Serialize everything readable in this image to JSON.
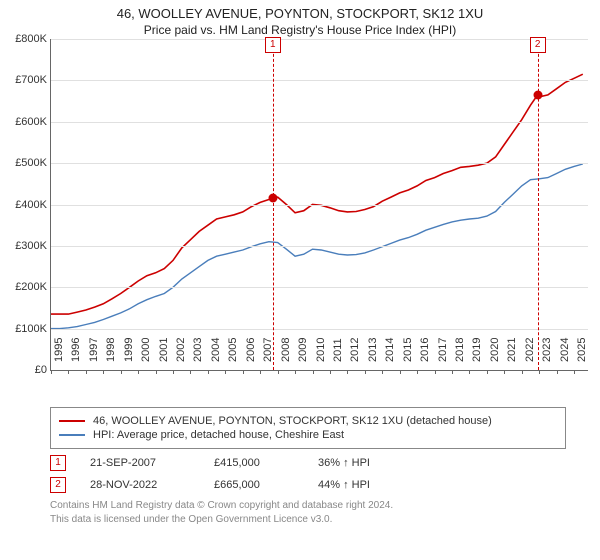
{
  "title": "46, WOOLLEY AVENUE, POYNTON, STOCKPORT, SK12 1XU",
  "subtitle": "Price paid vs. HM Land Registry's House Price Index (HPI)",
  "chart": {
    "type": "line",
    "background_color": "#ffffff",
    "grid_color": "#e0e0e0",
    "axis_color": "#666666",
    "x": {
      "min": 1995,
      "max": 2025.8,
      "ticks": [
        1995,
        1996,
        1997,
        1998,
        1999,
        2000,
        2001,
        2002,
        2003,
        2004,
        2005,
        2006,
        2007,
        2008,
        2009,
        2010,
        2011,
        2012,
        2013,
        2014,
        2015,
        2016,
        2017,
        2018,
        2019,
        2020,
        2021,
        2022,
        2023,
        2024,
        2025
      ]
    },
    "y": {
      "min": 0,
      "max": 800000,
      "tick_step": 100000,
      "prefix": "£",
      "suffix": "K",
      "divide": 1000
    },
    "series": [
      {
        "name": "46, WOOLLEY AVENUE, POYNTON, STOCKPORT, SK12 1XU (detached house)",
        "color": "#cc0000",
        "line_width": 1.6,
        "points": [
          [
            1995.0,
            135000
          ],
          [
            1995.5,
            135000
          ],
          [
            1996.0,
            135000
          ],
          [
            1996.5,
            140000
          ],
          [
            1997.0,
            145000
          ],
          [
            1997.5,
            152000
          ],
          [
            1998.0,
            160000
          ],
          [
            1998.5,
            172000
          ],
          [
            1999.0,
            185000
          ],
          [
            1999.5,
            200000
          ],
          [
            2000.0,
            215000
          ],
          [
            2000.5,
            228000
          ],
          [
            2001.0,
            235000
          ],
          [
            2001.5,
            245000
          ],
          [
            2002.0,
            265000
          ],
          [
            2002.5,
            295000
          ],
          [
            2003.0,
            315000
          ],
          [
            2003.5,
            335000
          ],
          [
            2004.0,
            350000
          ],
          [
            2004.5,
            365000
          ],
          [
            2005.0,
            370000
          ],
          [
            2005.5,
            375000
          ],
          [
            2006.0,
            382000
          ],
          [
            2006.5,
            395000
          ],
          [
            2007.0,
            405000
          ],
          [
            2007.5,
            412000
          ],
          [
            2007.72,
            415000
          ],
          [
            2008.0,
            418000
          ],
          [
            2008.5,
            400000
          ],
          [
            2009.0,
            380000
          ],
          [
            2009.5,
            385000
          ],
          [
            2010.0,
            400000
          ],
          [
            2010.5,
            398000
          ],
          [
            2011.0,
            392000
          ],
          [
            2011.5,
            385000
          ],
          [
            2012.0,
            382000
          ],
          [
            2012.5,
            383000
          ],
          [
            2013.0,
            388000
          ],
          [
            2013.5,
            395000
          ],
          [
            2014.0,
            408000
          ],
          [
            2014.5,
            418000
          ],
          [
            2015.0,
            428000
          ],
          [
            2015.5,
            435000
          ],
          [
            2016.0,
            445000
          ],
          [
            2016.5,
            458000
          ],
          [
            2017.0,
            465000
          ],
          [
            2017.5,
            475000
          ],
          [
            2018.0,
            482000
          ],
          [
            2018.5,
            490000
          ],
          [
            2019.0,
            492000
          ],
          [
            2019.5,
            495000
          ],
          [
            2020.0,
            500000
          ],
          [
            2020.5,
            515000
          ],
          [
            2021.0,
            545000
          ],
          [
            2021.5,
            575000
          ],
          [
            2022.0,
            605000
          ],
          [
            2022.5,
            640000
          ],
          [
            2022.91,
            665000
          ],
          [
            2023.0,
            660000
          ],
          [
            2023.5,
            665000
          ],
          [
            2024.0,
            680000
          ],
          [
            2024.5,
            695000
          ],
          [
            2025.0,
            705000
          ],
          [
            2025.5,
            715000
          ]
        ]
      },
      {
        "name": "HPI: Average price, detached house, Cheshire East",
        "color": "#4a7ebb",
        "line_width": 1.4,
        "points": [
          [
            1995.0,
            100000
          ],
          [
            1995.5,
            100000
          ],
          [
            1996.0,
            102000
          ],
          [
            1996.5,
            105000
          ],
          [
            1997.0,
            110000
          ],
          [
            1997.5,
            115000
          ],
          [
            1998.0,
            122000
          ],
          [
            1998.5,
            130000
          ],
          [
            1999.0,
            138000
          ],
          [
            1999.5,
            148000
          ],
          [
            2000.0,
            160000
          ],
          [
            2000.5,
            170000
          ],
          [
            2001.0,
            178000
          ],
          [
            2001.5,
            185000
          ],
          [
            2002.0,
            200000
          ],
          [
            2002.5,
            220000
          ],
          [
            2003.0,
            235000
          ],
          [
            2003.5,
            250000
          ],
          [
            2004.0,
            265000
          ],
          [
            2004.5,
            275000
          ],
          [
            2005.0,
            280000
          ],
          [
            2005.5,
            285000
          ],
          [
            2006.0,
            290000
          ],
          [
            2006.5,
            298000
          ],
          [
            2007.0,
            305000
          ],
          [
            2007.5,
            310000
          ],
          [
            2008.0,
            308000
          ],
          [
            2008.5,
            292000
          ],
          [
            2009.0,
            275000
          ],
          [
            2009.5,
            280000
          ],
          [
            2010.0,
            292000
          ],
          [
            2010.5,
            290000
          ],
          [
            2011.0,
            285000
          ],
          [
            2011.5,
            280000
          ],
          [
            2012.0,
            278000
          ],
          [
            2012.5,
            279000
          ],
          [
            2013.0,
            283000
          ],
          [
            2013.5,
            290000
          ],
          [
            2014.0,
            298000
          ],
          [
            2014.5,
            306000
          ],
          [
            2015.0,
            314000
          ],
          [
            2015.5,
            320000
          ],
          [
            2016.0,
            328000
          ],
          [
            2016.5,
            338000
          ],
          [
            2017.0,
            345000
          ],
          [
            2017.5,
            352000
          ],
          [
            2018.0,
            358000
          ],
          [
            2018.5,
            362000
          ],
          [
            2019.0,
            365000
          ],
          [
            2019.5,
            367000
          ],
          [
            2020.0,
            372000
          ],
          [
            2020.5,
            383000
          ],
          [
            2021.0,
            405000
          ],
          [
            2021.5,
            425000
          ],
          [
            2022.0,
            445000
          ],
          [
            2022.5,
            460000
          ],
          [
            2023.0,
            462000
          ],
          [
            2023.5,
            465000
          ],
          [
            2024.0,
            475000
          ],
          [
            2024.5,
            485000
          ],
          [
            2025.0,
            492000
          ],
          [
            2025.5,
            498000
          ]
        ]
      }
    ],
    "markers": [
      {
        "badge": "1",
        "x": 2007.72,
        "y": 415000,
        "color": "#cc0000"
      },
      {
        "badge": "2",
        "x": 2022.91,
        "y": 665000,
        "color": "#cc0000"
      }
    ]
  },
  "transactions": [
    {
      "badge": "1",
      "date": "21-SEP-2007",
      "price": "£415,000",
      "diff": "36% ↑ HPI"
    },
    {
      "badge": "2",
      "date": "28-NOV-2022",
      "price": "£665,000",
      "diff": "44% ↑ HPI"
    }
  ],
  "footer": {
    "line1": "Contains HM Land Registry data © Crown copyright and database right 2024.",
    "line2": "This data is licensed under the Open Government Licence v3.0."
  }
}
